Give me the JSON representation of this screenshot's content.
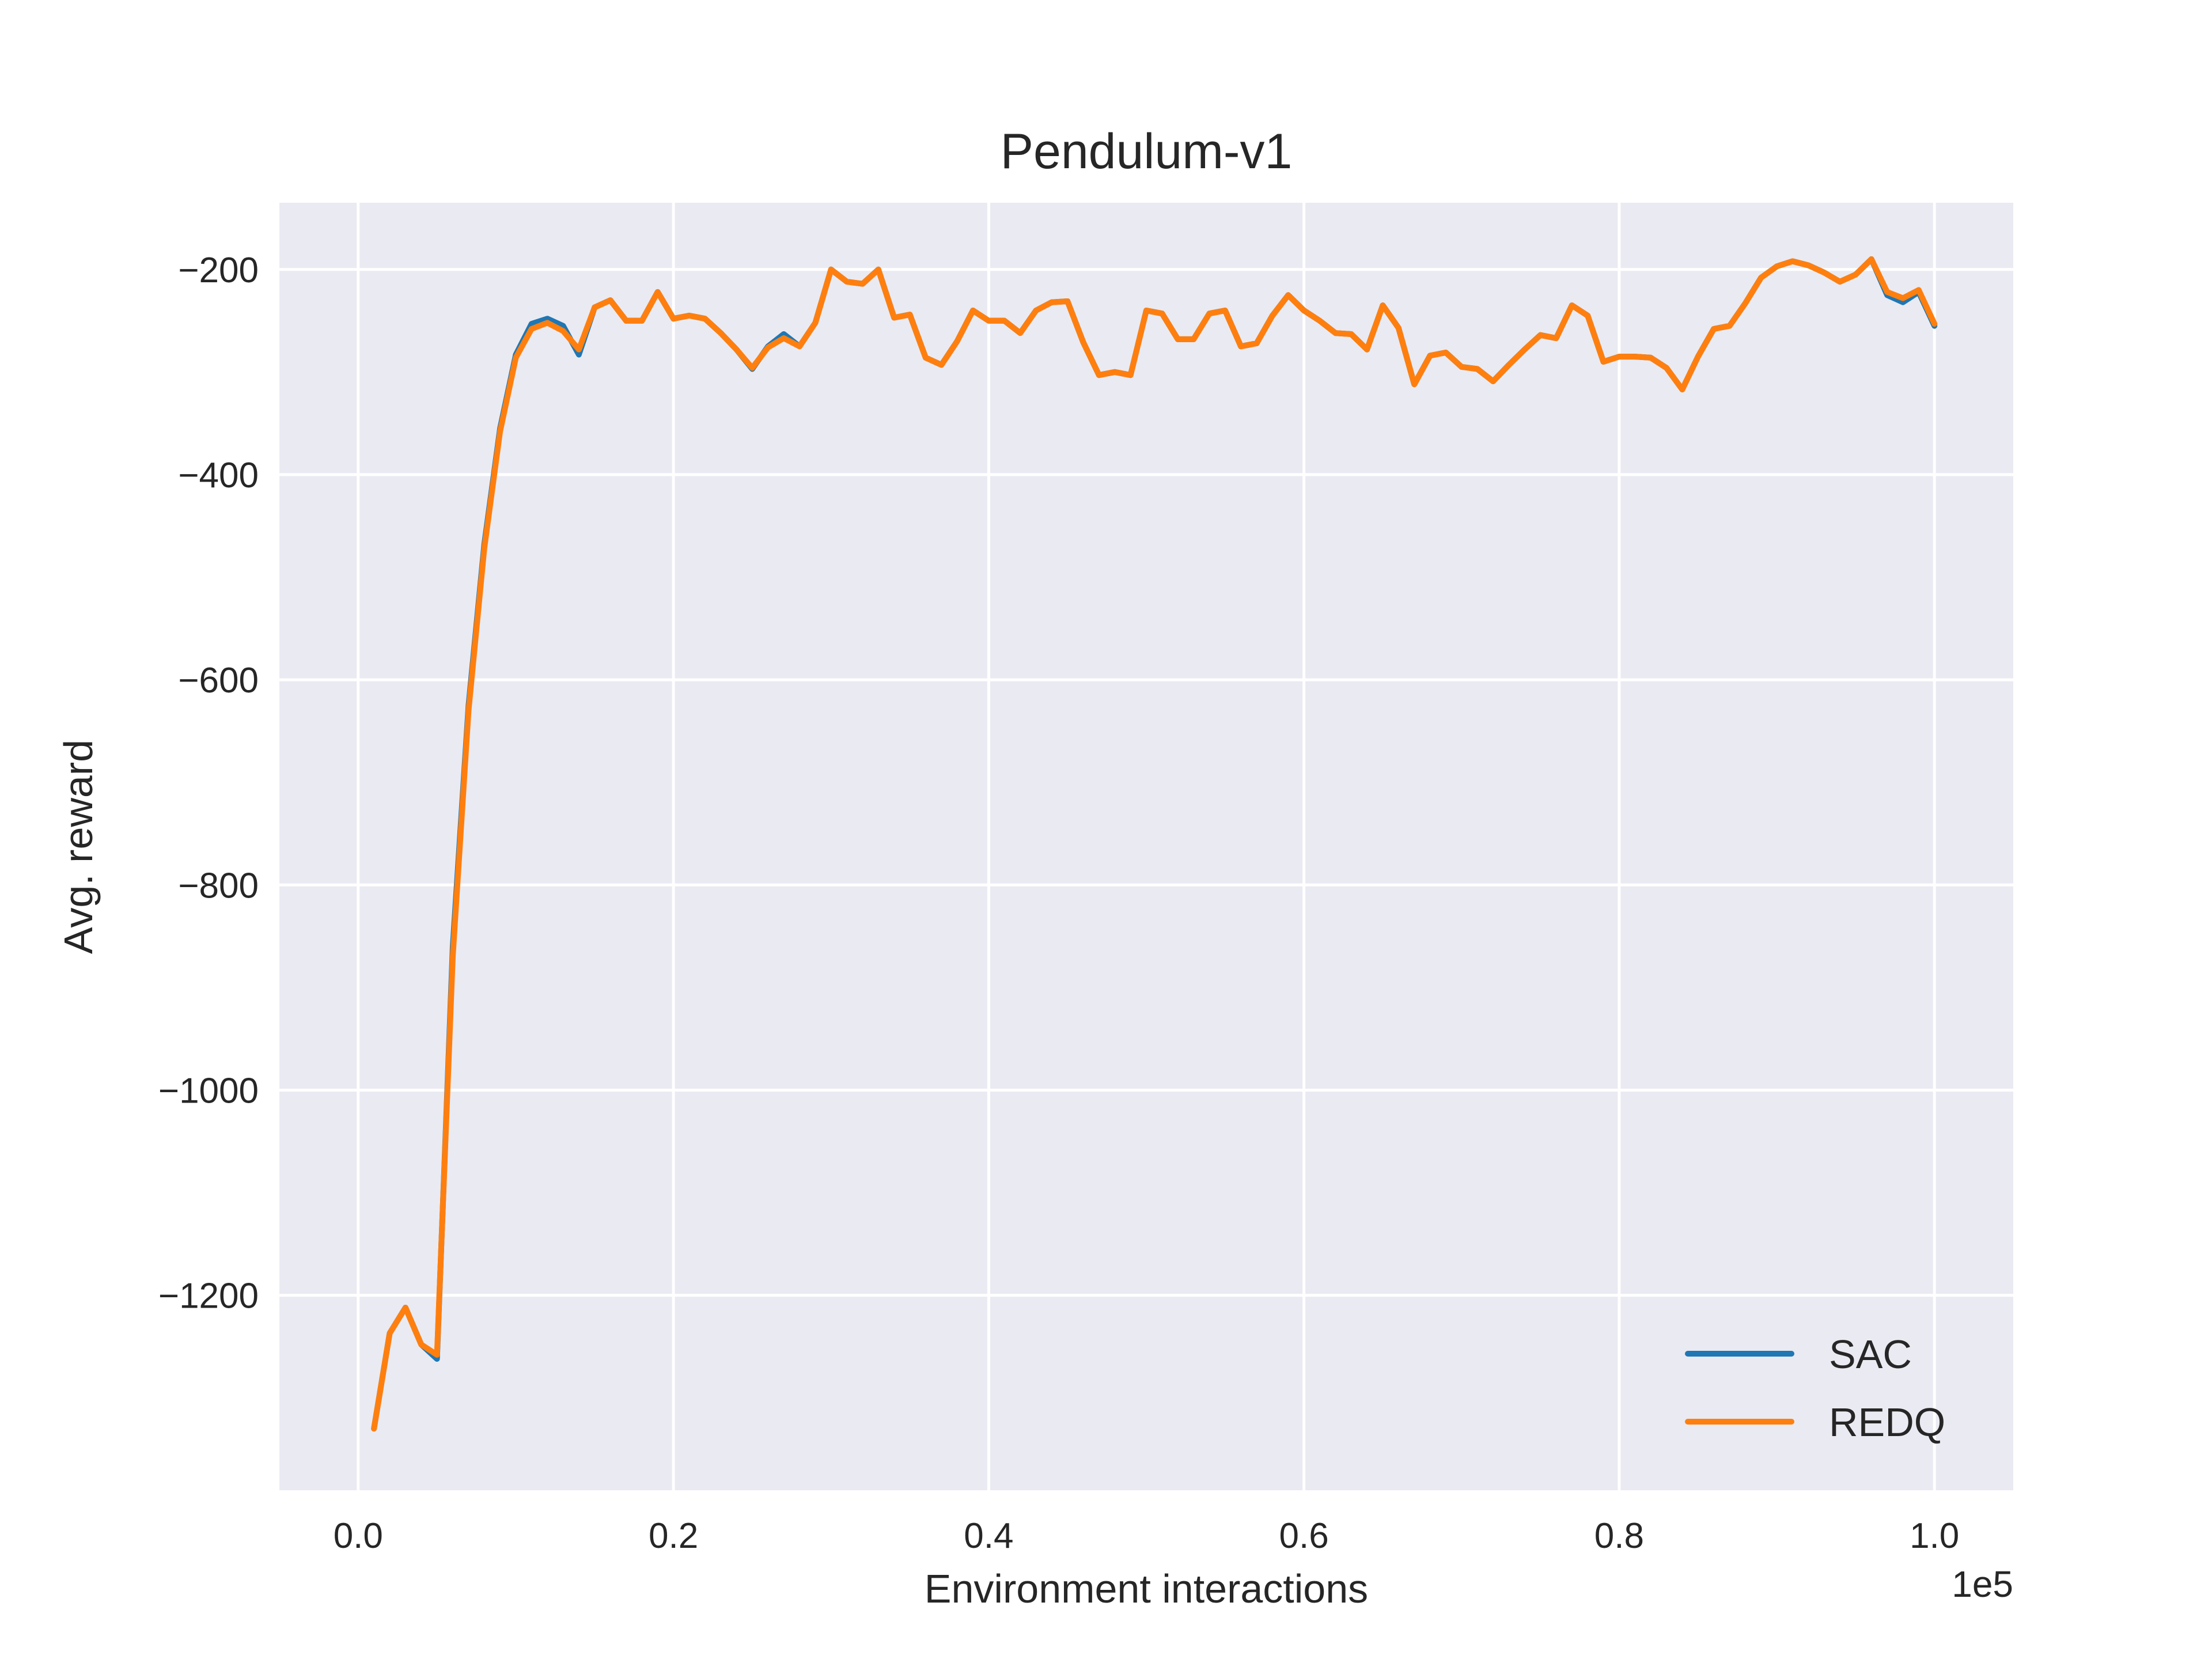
{
  "chart_data": {
    "type": "line",
    "title": "Pendulum-v1",
    "xlabel": "Environment interactions",
    "ylabel": "Avg. reward",
    "x_offset_label": "1e5",
    "xlim": [
      -0.05,
      1.05
    ],
    "ylim": [
      -1390,
      -135
    ],
    "x_ticks": [
      0.0,
      0.2,
      0.4,
      0.6,
      0.8,
      1.0
    ],
    "x_tick_labels": [
      "0.0",
      "0.2",
      "0.4",
      "0.6",
      "0.8",
      "1.0"
    ],
    "y_ticks": [
      -200,
      -400,
      -600,
      -800,
      -1000,
      -1200
    ],
    "y_tick_labels": [
      "−200",
      "−400",
      "−600",
      "−800",
      "−1000",
      "−1200"
    ],
    "grid": true,
    "legend_position": "lower-right",
    "background": "#eaeaf2",
    "x": [
      0.01,
      0.02,
      0.03,
      0.04,
      0.05,
      0.06,
      0.07,
      0.08,
      0.09,
      0.1,
      0.11,
      0.12,
      0.13,
      0.14,
      0.15,
      0.16,
      0.17,
      0.18,
      0.19,
      0.2,
      0.21,
      0.22,
      0.23,
      0.24,
      0.25,
      0.26,
      0.27,
      0.28,
      0.29,
      0.3,
      0.31,
      0.32,
      0.33,
      0.34,
      0.35,
      0.36,
      0.37,
      0.38,
      0.39,
      0.4,
      0.41,
      0.42,
      0.43,
      0.44,
      0.45,
      0.46,
      0.47,
      0.48,
      0.49,
      0.5,
      0.51,
      0.52,
      0.53,
      0.54,
      0.55,
      0.56,
      0.57,
      0.58,
      0.59,
      0.6,
      0.61,
      0.62,
      0.63,
      0.64,
      0.65,
      0.66,
      0.67,
      0.68,
      0.69,
      0.7,
      0.71,
      0.72,
      0.73,
      0.74,
      0.75,
      0.76,
      0.77,
      0.78,
      0.79,
      0.8,
      0.81,
      0.82,
      0.83,
      0.84,
      0.85,
      0.86,
      0.87,
      0.88,
      0.89,
      0.9,
      0.91,
      0.92,
      0.93,
      0.94,
      0.95,
      0.96,
      0.97,
      0.98,
      0.99,
      1.0
    ],
    "series": [
      {
        "name": "SAC",
        "color": "#1f77b4",
        "values": [
          -1330,
          -1237,
          -1212,
          -1248,
          -1262,
          -860,
          -625,
          -468,
          -355,
          -283,
          -253,
          -248,
          -255,
          -283,
          -237,
          -230,
          -250,
          -250,
          -222,
          -248,
          -245,
          -248,
          -262,
          -278,
          -297,
          -275,
          -263,
          -275,
          -252,
          -200,
          -212,
          -214,
          -200,
          -247,
          -244,
          -286,
          -293,
          -270,
          -240,
          -250,
          -250,
          -262,
          -240,
          -232,
          -231,
          -271,
          -303,
          -300,
          -303,
          -240,
          -243,
          -268,
          -268,
          -243,
          -240,
          -275,
          -272,
          -245,
          -225,
          -240,
          -250,
          -262,
          -263,
          -278,
          -235,
          -257,
          -312,
          -284,
          -281,
          -295,
          -297,
          -309,
          -293,
          -278,
          -264,
          -267,
          -235,
          -245,
          -290,
          -285,
          -285,
          -286,
          -296,
          -317,
          -285,
          -258,
          -255,
          -233,
          -208,
          -197,
          -192,
          -196,
          -203,
          -212,
          -205,
          -190,
          -225,
          -232,
          -222,
          -255
        ]
      },
      {
        "name": "REDQ",
        "color": "#ff7f0e",
        "values": [
          -1330,
          -1237,
          -1212,
          -1248,
          -1258,
          -870,
          -630,
          -472,
          -358,
          -286,
          -258,
          -252,
          -260,
          -278,
          -237,
          -230,
          -250,
          -250,
          -222,
          -248,
          -245,
          -248,
          -262,
          -278,
          -296,
          -276,
          -267,
          -275,
          -252,
          -200,
          -212,
          -214,
          -200,
          -247,
          -244,
          -286,
          -293,
          -270,
          -240,
          -250,
          -250,
          -262,
          -240,
          -232,
          -231,
          -271,
          -303,
          -300,
          -303,
          -240,
          -243,
          -268,
          -268,
          -243,
          -240,
          -275,
          -272,
          -245,
          -225,
          -240,
          -250,
          -262,
          -263,
          -278,
          -235,
          -257,
          -312,
          -284,
          -281,
          -295,
          -297,
          -309,
          -293,
          -278,
          -264,
          -267,
          -235,
          -245,
          -290,
          -285,
          -285,
          -286,
          -296,
          -317,
          -285,
          -258,
          -255,
          -233,
          -208,
          -197,
          -192,
          -196,
          -203,
          -212,
          -205,
          -190,
          -222,
          -228,
          -220,
          -253
        ]
      }
    ]
  }
}
